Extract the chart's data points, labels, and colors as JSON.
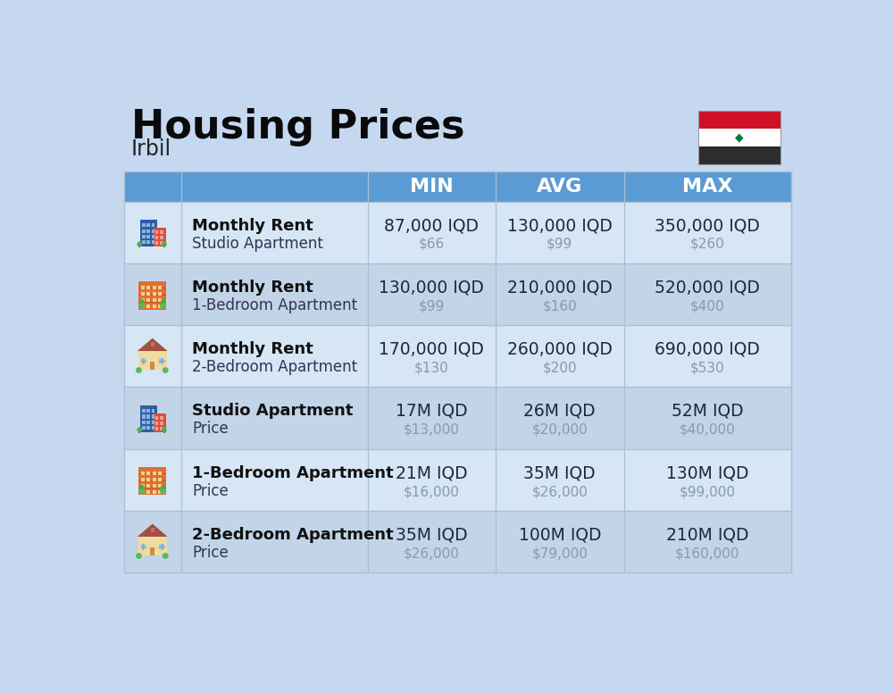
{
  "title": "Housing Prices",
  "subtitle": "Irbil",
  "bg_color": "#c5d8f0",
  "header_bg": "#5b9bd5",
  "header_text_color": "#ffffff",
  "row_bg_even": "#d6e6f5",
  "row_bg_odd": "#c2d4e8",
  "col_headers": [
    "MIN",
    "AVG",
    "MAX"
  ],
  "rows": [
    {
      "bold_label": "Monthly Rent",
      "sub_label": "Studio Apartment",
      "min_main": "87,000 IQD",
      "min_sub": "$66",
      "avg_main": "130,000 IQD",
      "avg_sub": "$99",
      "max_main": "350,000 IQD",
      "max_sub": "$260",
      "icon_type": "blue_office"
    },
    {
      "bold_label": "Monthly Rent",
      "sub_label": "1-Bedroom Apartment",
      "min_main": "130,000 IQD",
      "min_sub": "$99",
      "avg_main": "210,000 IQD",
      "avg_sub": "$160",
      "max_main": "520,000 IQD",
      "max_sub": "$400",
      "icon_type": "orange_apt"
    },
    {
      "bold_label": "Monthly Rent",
      "sub_label": "2-Bedroom Apartment",
      "min_main": "170,000 IQD",
      "min_sub": "$130",
      "avg_main": "260,000 IQD",
      "avg_sub": "$200",
      "max_main": "690,000 IQD",
      "max_sub": "$530",
      "icon_type": "beige_house"
    },
    {
      "bold_label": "Studio Apartment",
      "sub_label": "Price",
      "min_main": "17M IQD",
      "min_sub": "$13,000",
      "avg_main": "26M IQD",
      "avg_sub": "$20,000",
      "max_main": "52M IQD",
      "max_sub": "$40,000",
      "icon_type": "blue_office"
    },
    {
      "bold_label": "1-Bedroom Apartment",
      "sub_label": "Price",
      "min_main": "21M IQD",
      "min_sub": "$16,000",
      "avg_main": "35M IQD",
      "avg_sub": "$26,000",
      "max_main": "130M IQD",
      "max_sub": "$99,000",
      "icon_type": "orange_apt"
    },
    {
      "bold_label": "2-Bedroom Apartment",
      "sub_label": "Price",
      "min_main": "35M IQD",
      "min_sub": "$26,000",
      "avg_main": "100M IQD",
      "avg_sub": "$79,000",
      "max_main": "210M IQD",
      "max_sub": "$160,000",
      "icon_type": "beige_house2"
    }
  ],
  "divider_color": "#a8bfd4",
  "main_text_color": "#1a2a3a",
  "sub_text_color": "#8899aa",
  "bold_label_color": "#111111",
  "sub_label_color": "#333355",
  "flag_red": "#ce1126",
  "flag_white": "#ffffff",
  "flag_black": "#2d2d2d",
  "flag_green": "#007a3d"
}
